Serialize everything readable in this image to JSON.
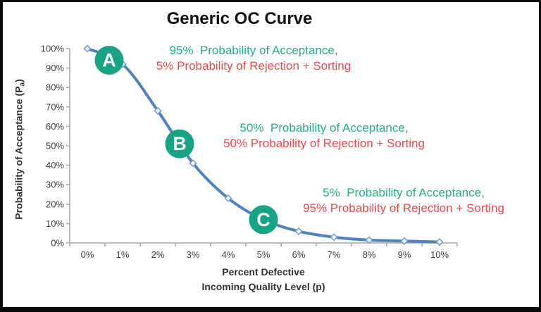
{
  "window": {
    "background_color": "#ffffff",
    "border_color": "#0a0a0a"
  },
  "chart_data": {
    "type": "line",
    "title": "Generic OC Curve",
    "xlabel_line1": "Percent Defective",
    "xlabel_line2": "Incoming Quality Level (p)",
    "ylabel_prefix": "Probability of Acceptance (P",
    "ylabel_subscript": "a",
    "ylabel_suffix": ")",
    "x_tick_labels": [
      "0%",
      "1%",
      "2%",
      "3%",
      "4%",
      "5%",
      "6%",
      "7%",
      "8%",
      "9%",
      "10%"
    ],
    "y_tick_labels": [
      "0%",
      "10%",
      "20%",
      "30%",
      "40%",
      "50%",
      "60%",
      "70%",
      "80%",
      "90%",
      "100%"
    ],
    "x_values_percent": [
      0,
      1,
      2,
      3,
      4,
      5,
      6,
      7,
      8,
      9,
      10
    ],
    "y_values_percent": [
      100,
      92,
      68,
      41,
      23,
      12,
      6,
      3,
      1.5,
      1,
      0.5
    ],
    "xlim_percent": [
      0,
      10
    ],
    "ylim_percent": [
      0,
      100
    ],
    "grid": "off",
    "legend": "none",
    "line_color": "#4f81bd",
    "marker_style": "diamond-outline",
    "marker_stroke_color": "#7da0cf",
    "marker_fill_color": "#f2f6fb",
    "axis_color": "#a6a6a6",
    "tick_label_color": "#404040",
    "point_badges": [
      {
        "label": "A",
        "x_percent": 0.62,
        "y_percent": 94
      },
      {
        "label": "B",
        "x_percent": 2.62,
        "y_percent": 51
      },
      {
        "label": "C",
        "x_percent": 5.0,
        "y_percent": 12
      }
    ],
    "badge_fill_color": "#17a385",
    "badge_text_color": "#ffffff",
    "accept_color": "#2aa98c",
    "reject_color": "#e8494c",
    "annotations": [
      {
        "accept": "95%  Probability of Acceptance,",
        "reject": "5% Probability of Rejection + Sorting"
      },
      {
        "accept": "50%  Probability of Acceptance,",
        "reject": "50% Probability of Rejection + Sorting"
      },
      {
        "accept": "5%  Probability of Acceptance,",
        "reject": "95% Probability of Rejection + Sorting"
      }
    ]
  }
}
